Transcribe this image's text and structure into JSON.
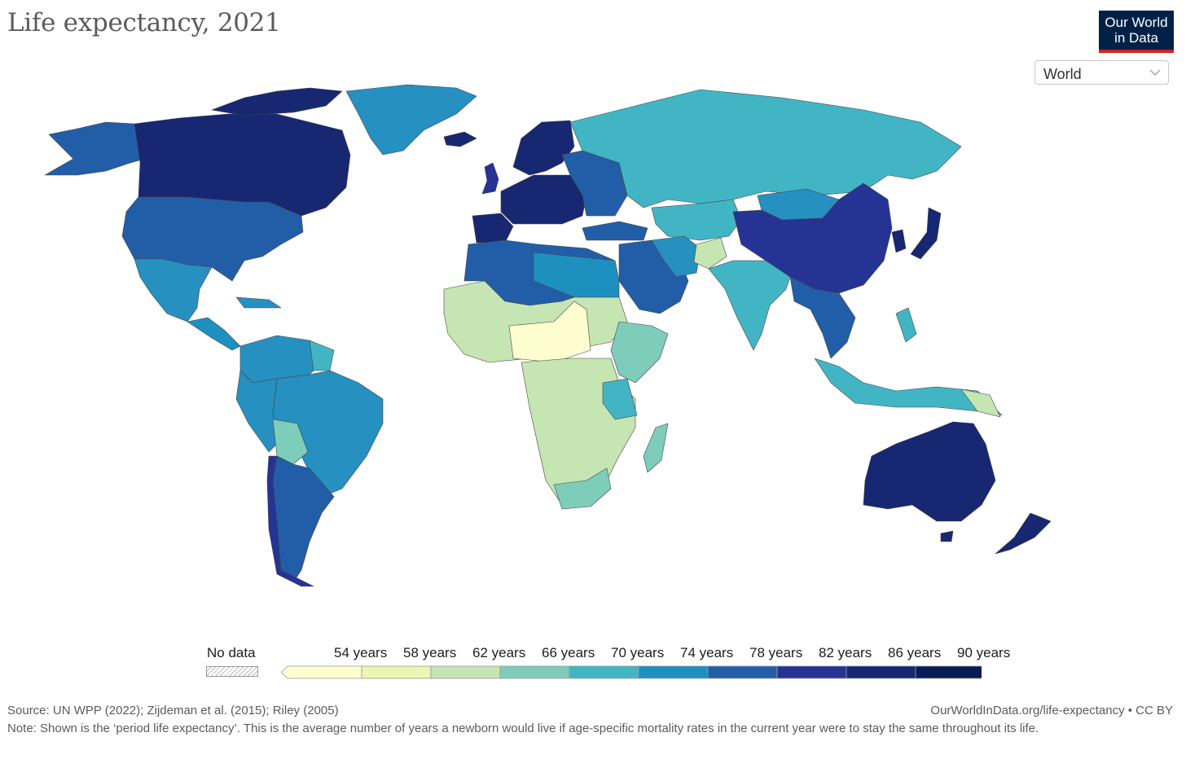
{
  "title": "Life expectancy, 2021",
  "logo": {
    "line1": "Our World",
    "line2": "in Data"
  },
  "region_select": {
    "value": "World"
  },
  "legend": {
    "no_data_label": "No data",
    "ticks": [
      "54 years",
      "58 years",
      "62 years",
      "66 years",
      "70 years",
      "74 years",
      "78 years",
      "82 years",
      "86 years",
      "90 years"
    ],
    "colors": [
      "#fdfdd0",
      "#ecf6b2",
      "#c5e5b3",
      "#7ecdbb",
      "#42b5c5",
      "#1e90c0",
      "#225ea8",
      "#253494",
      "#172772",
      "#081d58"
    ]
  },
  "footer": {
    "source": "Source: UN WPP (2022); Zijdeman et al. (2015); Riley (2005)",
    "url": "OurWorldInData.org/life-expectancy • CC BY",
    "note": "Note: Shown is the ‘period life expectancy’. This is the average number of years a newborn would live if age-specific mortality rates in the current year were to stay the same throughout its life."
  }
}
